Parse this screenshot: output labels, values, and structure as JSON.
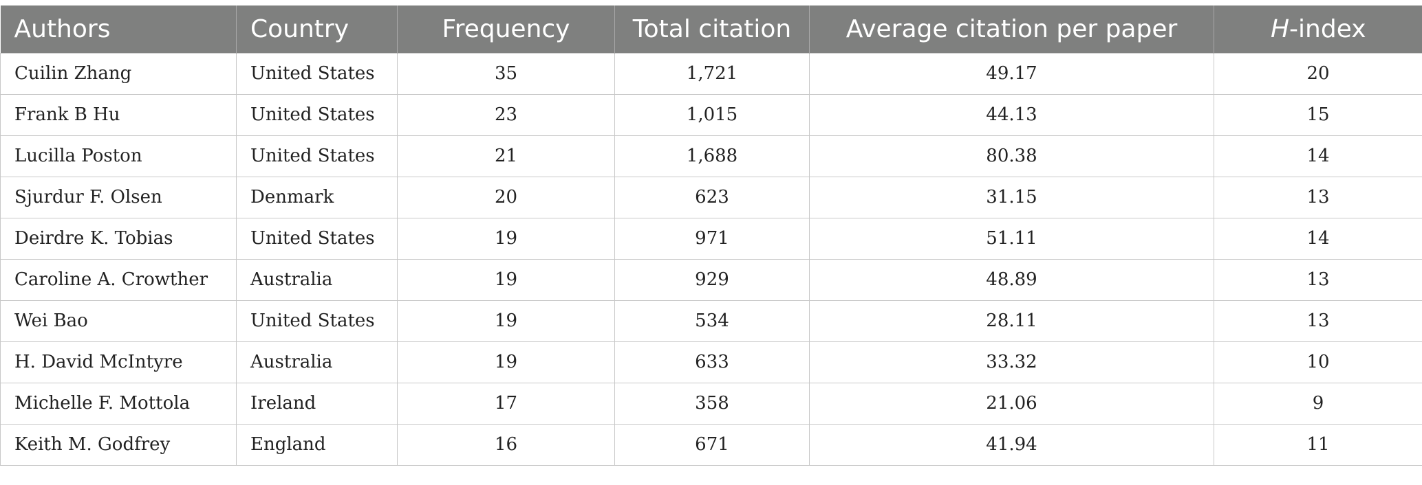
{
  "table": {
    "headers": {
      "authors": "Authors",
      "country": "Country",
      "frequency": "Frequency",
      "total_citation": "Total citation",
      "average_citation": "Average citation per paper",
      "h_index_letter": "H",
      "h_index_suffix": "-index"
    },
    "rows": [
      {
        "author": "Cuilin Zhang",
        "country": "United States",
        "frequency": "35",
        "total_citation": "1,721",
        "average_citation": "49.17",
        "h_index": "20"
      },
      {
        "author": "Frank B Hu",
        "country": "United States",
        "frequency": "23",
        "total_citation": "1,015",
        "average_citation": "44.13",
        "h_index": "15"
      },
      {
        "author": "Lucilla Poston",
        "country": "United States",
        "frequency": "21",
        "total_citation": "1,688",
        "average_citation": "80.38",
        "h_index": "14"
      },
      {
        "author": "Sjurdur F. Olsen",
        "country": "Denmark",
        "frequency": "20",
        "total_citation": "623",
        "average_citation": "31.15",
        "h_index": "13"
      },
      {
        "author": "Deirdre K. Tobias",
        "country": "United States",
        "frequency": "19",
        "total_citation": "971",
        "average_citation": "51.11",
        "h_index": "14"
      },
      {
        "author": "Caroline A. Crowther",
        "country": "Australia",
        "frequency": "19",
        "total_citation": "929",
        "average_citation": "48.89",
        "h_index": "13"
      },
      {
        "author": "Wei Bao",
        "country": "United States",
        "frequency": "19",
        "total_citation": "534",
        "average_citation": "28.11",
        "h_index": "13"
      },
      {
        "author": "H. David McIntyre",
        "country": "Australia",
        "frequency": "19",
        "total_citation": "633",
        "average_citation": "33.32",
        "h_index": "10"
      },
      {
        "author": "Michelle F. Mottola",
        "country": "Ireland",
        "frequency": "17",
        "total_citation": "358",
        "average_citation": "21.06",
        "h_index": "9"
      },
      {
        "author": "Keith M. Godfrey",
        "country": "England",
        "frequency": "16",
        "total_citation": "671",
        "average_citation": "41.94",
        "h_index": "11"
      }
    ]
  },
  "colors": {
    "header_background": "#7f807f",
    "header_text": "#ffffff",
    "grid_line": "#c8c8c8",
    "body_text": "#222222"
  }
}
